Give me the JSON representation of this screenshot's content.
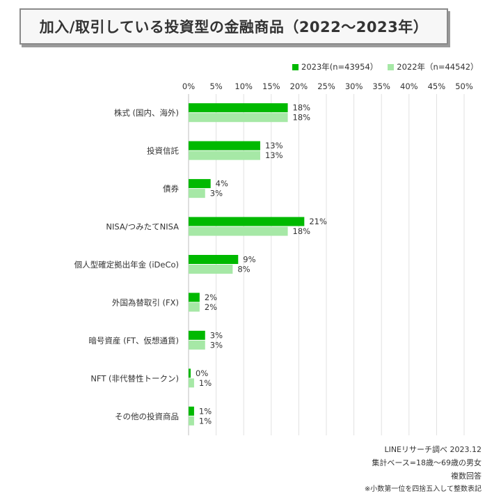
{
  "chart_data": {
    "type": "bar",
    "orientation": "horizontal",
    "title": "加入/取引している投資型の金融商品（2022〜2023年）",
    "categories": [
      "株式 (国内、海外)",
      "投資信託",
      "債券",
      "NISA/つみたてNISA",
      "個人型確定拠出年金 (iDeCo)",
      "外国為替取引 (FX)",
      "暗号資産 (FT、仮想通貨)",
      "NFT (非代替性トークン)",
      "その他の投資商品"
    ],
    "series": [
      {
        "name": "2023年(n=43954）",
        "color": "#00b900",
        "values": [
          18,
          13,
          4,
          21,
          9,
          2,
          3,
          0,
          1
        ],
        "labels": [
          "18%",
          "13%",
          "4%",
          "21%",
          "9%",
          "2%",
          "3%",
          "0%",
          "1%"
        ]
      },
      {
        "name": "2022年（n=44542）",
        "color": "#a6e8a6",
        "values": [
          18,
          13,
          3,
          18,
          8,
          2,
          3,
          1,
          1
        ],
        "labels": [
          "18%",
          "13%",
          "3%",
          "18%",
          "8%",
          "2%",
          "3%",
          "1%",
          "1%"
        ]
      }
    ],
    "xlim": [
      0,
      50
    ],
    "xticks": [
      "0%",
      "5%",
      "10%",
      "15%",
      "20%",
      "25%",
      "30%",
      "35%",
      "40%",
      "45%",
      "50%"
    ],
    "xaxis_position": "top",
    "grid": true,
    "legend": "top-right"
  },
  "footnotes": [
    "LINEリサーチ調べ 2023.12",
    "集計ベース=18歳〜69歳の男女",
    "複数回答",
    "※小数第一位を四捨五入して整数表記"
  ]
}
